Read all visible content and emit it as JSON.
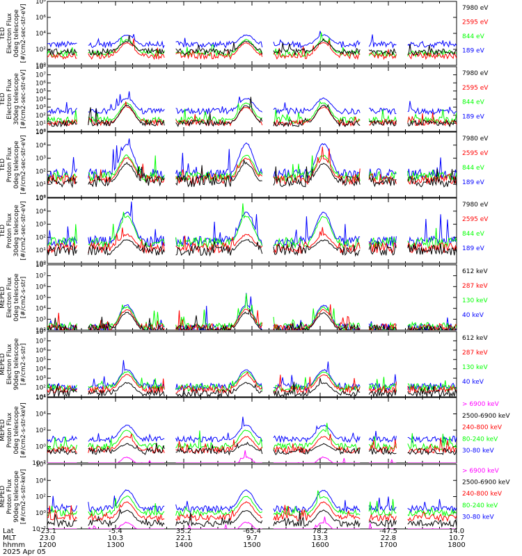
{
  "colors": {
    "blue": "#0000ff",
    "red": "#ff0000",
    "green": "#00ff00",
    "black": "#000000",
    "magenta": "#ff00ff"
  },
  "chart_data": [
    {
      "type": "line",
      "instrument": "TED",
      "ylabel": [
        "TED",
        "Electron Flux",
        "0deg telescope",
        "[#/cm2-sec-str-eV]"
      ],
      "ylim_log10": [
        0,
        8
      ],
      "ytick_exponents": [
        0,
        2,
        4,
        6,
        8
      ],
      "legend": [
        "7980 eV",
        "2595 eV",
        "844 eV",
        "189 eV"
      ],
      "series_colors": [
        "black",
        "red",
        "green",
        "blue"
      ],
      "baseline_log10": [
        1.7,
        1.2,
        1.5,
        2.6
      ],
      "x": [
        1200,
        1240,
        1300,
        1340,
        1400,
        1440,
        1500,
        1540,
        1600,
        1640,
        1700,
        1800
      ],
      "bump_times": [
        1310,
        1455,
        1603
      ],
      "bump_peak_log10": [
        3.0,
        2.8,
        3.2,
        3.8
      ]
    },
    {
      "type": "line",
      "instrument": "TED",
      "ylabel": [
        "TED",
        "Electron Flux",
        "30deg telescope",
        "[#/cm2-sec-str-eV]"
      ],
      "ylim_log10": [
        0,
        8
      ],
      "ytick_exponents": [
        0,
        1,
        2,
        3,
        4,
        5,
        6,
        7,
        8
      ],
      "legend": [
        "7980 eV",
        "2595 eV",
        "844 eV",
        "189 eV"
      ],
      "series_colors": [
        "black",
        "red",
        "green",
        "blue"
      ],
      "baseline_log10": [
        1.0,
        1.1,
        1.4,
        2.5
      ],
      "bump_times": [
        1310,
        1455,
        1603
      ],
      "bump_peak_log10": [
        3.2,
        3.0,
        3.5,
        4.1
      ]
    },
    {
      "type": "line",
      "instrument": "TED",
      "ylabel": [
        "TED",
        "Proton Flux",
        "0deg telescope",
        "[#/cm2-sec-str-eV]"
      ],
      "ylim_log10": [
        0,
        5
      ],
      "ytick_exponents": [
        0,
        1,
        2,
        3,
        4,
        5
      ],
      "legend": [
        "7980 eV",
        "2595 eV",
        "844 eV",
        "189 eV"
      ],
      "series_colors": [
        "black",
        "red",
        "green",
        "blue"
      ],
      "baseline_log10": [
        1.2,
        1.4,
        1.6,
        1.8
      ],
      "bump_times": [
        1310,
        1455,
        1603
      ],
      "bump_peak_log10": [
        2.6,
        3.0,
        3.2,
        4.1
      ]
    },
    {
      "type": "line",
      "instrument": "TED",
      "ylabel": [
        "TED",
        "Proton Flux",
        "30deg telescope",
        "[#/cm2-sec-str-eV]"
      ],
      "ylim_log10": [
        0,
        5
      ],
      "ytick_exponents": [
        0,
        1,
        2,
        3,
        4,
        5
      ],
      "legend": [
        "7980 eV",
        "2595 eV",
        "844 eV",
        "189 eV"
      ],
      "series_colors": [
        "black",
        "red",
        "green",
        "blue"
      ],
      "baseline_log10": [
        1.0,
        1.2,
        1.6,
        1.7
      ],
      "bump_times": [
        1310,
        1455,
        1603
      ],
      "bump_peak_log10": [
        1.8,
        2.2,
        3.6,
        3.9
      ]
    },
    {
      "type": "line",
      "instrument": "MEPED",
      "ylabel": [
        "MEPED",
        "Electron Flux",
        "0deg telescope",
        "[#/cm2-s-str]"
      ],
      "ylim_log10": [
        2,
        8
      ],
      "ytick_exponents": [
        2,
        3,
        4,
        5,
        6,
        7,
        8
      ],
      "legend": [
        "612 keV",
        "287 keV",
        "130 keV",
        "40 keV"
      ],
      "series_colors": [
        "black",
        "red",
        "green",
        "blue"
      ],
      "baseline_log10": [
        2.1,
        2.2,
        2.3,
        2.2
      ],
      "bump_times": [
        1310,
        1455,
        1603
      ],
      "bump_peak_log10": [
        3.6,
        3.9,
        4.1,
        4.3
      ]
    },
    {
      "type": "line",
      "instrument": "MEPED",
      "ylabel": [
        "MEPED",
        "Electron Flux",
        "90deg telescope",
        "[#/cm2-s-str]"
      ],
      "ylim_log10": [
        1,
        8
      ],
      "ytick_exponents": [
        1,
        2,
        3,
        4,
        5,
        6,
        7,
        8
      ],
      "legend": [
        "612 keV",
        "287 keV",
        "130 keV",
        "40 keV"
      ],
      "series_colors": [
        "black",
        "red",
        "green",
        "blue"
      ],
      "baseline_log10": [
        1.4,
        1.8,
        2.0,
        2.1
      ],
      "bump_times": [
        1310,
        1455,
        1603
      ],
      "bump_peak_log10": [
        2.5,
        3.4,
        3.7,
        3.9
      ]
    },
    {
      "type": "line",
      "instrument": "MEPED",
      "ylabel": [
        "MEPED",
        "Proton Flux",
        "0deg telescope",
        "[#/cm2-s-str-keV]"
      ],
      "ylim_log10": [
        -2,
        6
      ],
      "ytick_exponents": [
        -2,
        0,
        2,
        4,
        6
      ],
      "legend": [
        "> 6900 keV",
        "2500-6900 keV",
        "240-800 keV",
        "80-240 keV",
        "30-80 keV"
      ],
      "series_colors": [
        "magenta",
        "black",
        "red",
        "green",
        "blue"
      ],
      "baseline_log10": [
        -2.5,
        -0.6,
        -0.4,
        0.0,
        0.9
      ],
      "bump_times": [
        1310,
        1455,
        1603
      ],
      "bump_peak_log10": [
        -1.3,
        0.3,
        1.2,
        2.0,
        2.6
      ]
    },
    {
      "type": "line",
      "instrument": "MEPED",
      "ylabel": [
        "MEPED",
        "Proton Flux",
        "90deg telescope",
        "[#/cm2-s-str-keV]"
      ],
      "ylim_log10": [
        -2,
        6
      ],
      "ytick_exponents": [
        -2,
        0,
        2,
        4,
        6
      ],
      "legend": [
        "> 6900 keV",
        "2500-6900 keV",
        "240-800 keV",
        "80-240 keV",
        "30-80 keV"
      ],
      "series_colors": [
        "magenta",
        "black",
        "red",
        "green",
        "blue"
      ],
      "baseline_log10": [
        -2.5,
        -1.3,
        -0.6,
        0.0,
        0.5
      ],
      "bump_times": [
        1310,
        1455,
        1603
      ],
      "bump_peak_log10": [
        -1.2,
        0.3,
        1.3,
        2.0,
        2.8
      ]
    }
  ],
  "x_axis": {
    "row_labels": [
      "Lat",
      "MLT",
      "hhmm"
    ],
    "date": "2025 Apr 05",
    "lat": [
      "-23.1",
      "-5.4",
      "35.2",
      "-65.4",
      "78.2",
      "-47.5",
      "14.0"
    ],
    "mlt": [
      "23.0",
      "10.3",
      "22.1",
      "9.7",
      "13.3",
      "22.8",
      "10.7"
    ],
    "hhmm": [
      "1200",
      "1300",
      "1400",
      "1500",
      "1600",
      "1700",
      "1800"
    ]
  }
}
